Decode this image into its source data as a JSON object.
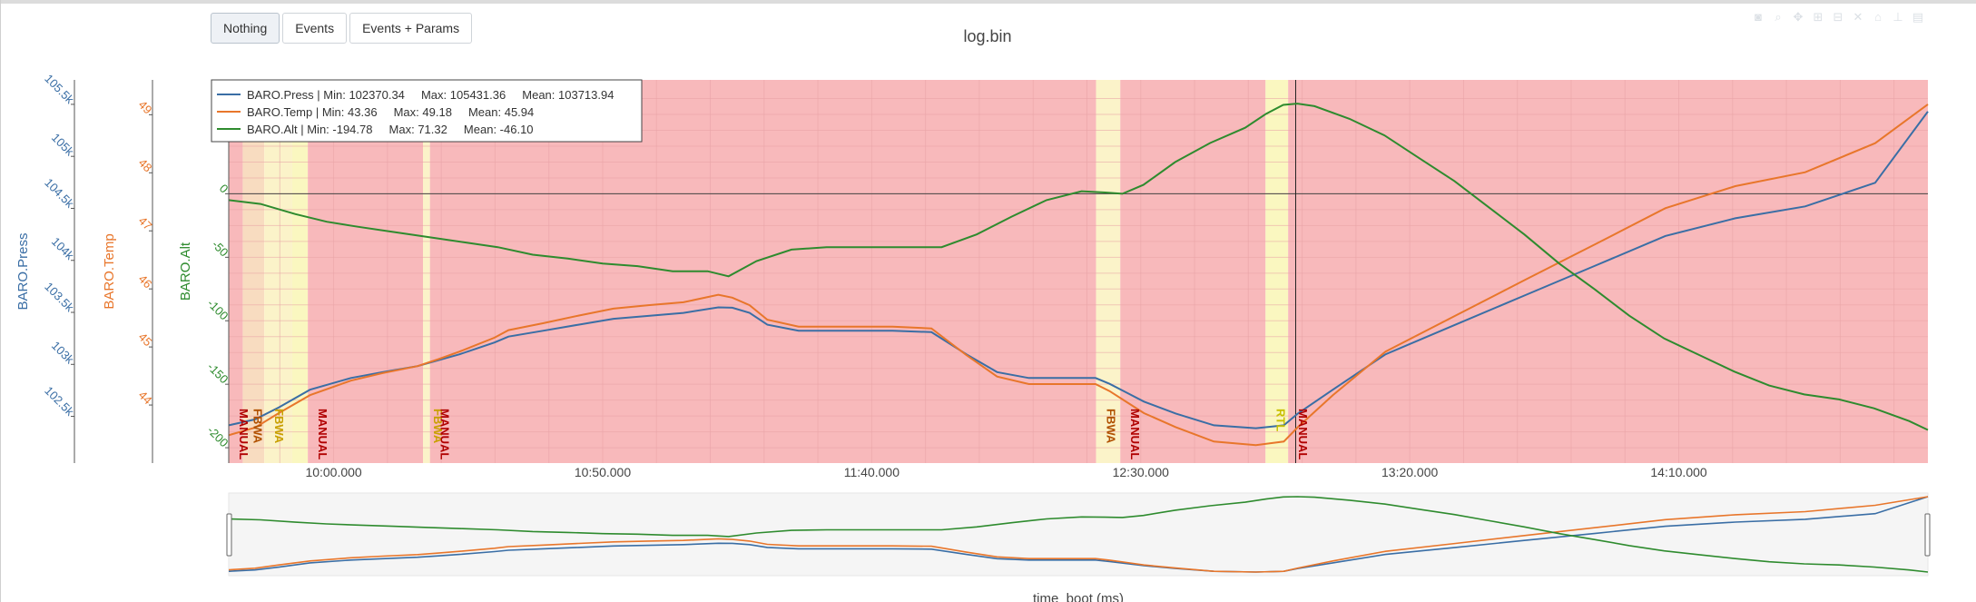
{
  "toolbar": {
    "buttons": [
      {
        "label": "Nothing",
        "active": true
      },
      {
        "label": "Events",
        "active": false
      },
      {
        "label": "Events + Params",
        "active": false
      }
    ]
  },
  "modebar_icons": [
    "camera-icon",
    "zoom-icon",
    "pan-icon",
    "zoom-in-icon",
    "zoom-out-icon",
    "autoscale-icon",
    "reset-axes-icon",
    "spike-lines-icon",
    "compare-hover-icon"
  ],
  "chart_data": {
    "type": "line",
    "title": "log.bin",
    "xlabel": "time_boot (ms)",
    "x_ticks": [
      "10:00.000",
      "10:50.000",
      "11:40.000",
      "12:30.000",
      "13:20.000",
      "14:10.000"
    ],
    "x_tick_values": [
      0,
      50,
      100,
      150,
      200,
      250
    ],
    "xlim": [
      -19.5,
      296.3
    ],
    "y_axes": [
      {
        "id": "press",
        "title": "BARO.Press",
        "color": "#3a6ea5",
        "ticks": [
          "102.5k",
          "103k",
          "103.5k",
          "104k",
          "104.5k",
          "105k",
          "105.5k"
        ],
        "tick_values": [
          102500,
          103000,
          103500,
          104000,
          104500,
          105000,
          105500
        ],
        "range": [
          102051,
          105735
        ]
      },
      {
        "id": "temp",
        "title": "BARO.Temp",
        "color": "#e8762b",
        "ticks": [
          "44",
          "45",
          "46",
          "47",
          "48",
          "49"
        ],
        "tick_values": [
          44,
          45,
          46,
          47,
          48,
          49
        ],
        "range": [
          43.0,
          49.6
        ]
      },
      {
        "id": "alt",
        "title": "BARO.Alt",
        "color": "#2e8b2e",
        "ticks": [
          "-200",
          "-150",
          "-100",
          "-50",
          "0"
        ],
        "tick_values": [
          -200,
          -150,
          -100,
          -50,
          0
        ],
        "range": [
          -212.1,
          89.7
        ]
      }
    ],
    "legend": {
      "placement": "top-left",
      "entries": [
        {
          "text": "BARO.Press | Min: 102370.34     Max: 105431.36     Mean: 103713.94",
          "color": "#3a6ea5"
        },
        {
          "text": "BARO.Temp | Min: 43.36     Max: 49.18     Mean: 45.94",
          "color": "#e8762b"
        },
        {
          "text": "BARO.Alt | Min: -194.78     Max: 71.32     Mean: -46.10",
          "color": "#2e8b2e"
        }
      ]
    },
    "mode_regions": [
      {
        "start": -19.5,
        "end": -16.9,
        "color": "#f8b9bb",
        "label": "MANUAL",
        "label_color": "#b00000"
      },
      {
        "start": -16.9,
        "end": -12.9,
        "color": "#f8dcc0",
        "label": "FBWA",
        "label_color": "#b05000"
      },
      {
        "start": -12.9,
        "end": -7.7,
        "color": "#fbf3c9",
        "label": "FBWA",
        "label_color": "#c8a000"
      },
      {
        "start": -7.7,
        "end": -4.8,
        "color": "#faf7c0",
        "label": "",
        "label_color": "#c8a000"
      },
      {
        "start": -4.8,
        "end": 16.6,
        "color": "#f8b9bb",
        "label": "MANUAL",
        "label_color": "#b00000"
      },
      {
        "start": 16.6,
        "end": 17.9,
        "color": "#fbf3c9",
        "label": "FBWA",
        "label_color": "#c8a000"
      },
      {
        "start": 17.9,
        "end": 141.7,
        "color": "#f8b9bb",
        "label": "MANUAL",
        "label_color": "#b00000"
      },
      {
        "start": 141.7,
        "end": 146.2,
        "color": "#fbf3c9",
        "label": "FBWA",
        "label_color": "#b05000"
      },
      {
        "start": 146.2,
        "end": 173.2,
        "color": "#f8b9bb",
        "label": "MANUAL",
        "label_color": "#b00000"
      },
      {
        "start": 173.2,
        "end": 177.4,
        "color": "#faf7c0",
        "label": "RTL",
        "label_color": "#c8c000"
      },
      {
        "start": 177.4,
        "end": 296.3,
        "color": "#f8b9bb",
        "label": "MANUAL",
        "label_color": "#b00000"
      }
    ],
    "cursor_x": 178.8,
    "series": [
      {
        "name": "BARO.Press",
        "axis": "press",
        "color": "#3a6ea5",
        "x": [
          -19.5,
          -14.6,
          -10.2,
          -4.4,
          3.2,
          9.1,
          15.6,
          19.5,
          23.4,
          29.9,
          32.5,
          39.0,
          45.5,
          52.0,
          58.5,
          65.0,
          71.5,
          74.1,
          77.3,
          80.6,
          86.4,
          97.5,
          103.9,
          111.1,
          117.6,
          123.3,
          129.2,
          134.5,
          138.4,
          141.6,
          144.2,
          147.4,
          150.6,
          156.5,
          163.6,
          171.4,
          176.6,
          179.2,
          185.7,
          195.5,
          208.5,
          221.5,
          234.5,
          247.5,
          260.5,
          273.5,
          286.5,
          296.3
        ],
        "y": [
          102414,
          102471,
          102585,
          102756,
          102869,
          102926,
          102983,
          103040,
          103097,
          103210,
          103267,
          103324,
          103381,
          103438,
          103466,
          103495,
          103548,
          103545,
          103495,
          103381,
          103324,
          103324,
          103324,
          103310,
          103097,
          102926,
          102869,
          102869,
          102869,
          102869,
          102813,
          102728,
          102642,
          102528,
          102414,
          102386,
          102414,
          102528,
          102756,
          103097,
          103381,
          103666,
          103950,
          104234,
          104405,
          104519,
          104746,
          105431
        ]
      },
      {
        "name": "BARO.Temp",
        "axis": "temp",
        "color": "#e8762b",
        "x": [
          -19.5,
          -14.6,
          -10.2,
          -4.4,
          3.2,
          9.1,
          15.6,
          19.5,
          23.4,
          29.9,
          32.5,
          39.0,
          45.5,
          52.0,
          58.5,
          65.0,
          71.5,
          74.1,
          77.3,
          80.6,
          86.4,
          97.5,
          103.9,
          111.1,
          117.6,
          123.3,
          129.2,
          134.5,
          138.4,
          141.6,
          144.2,
          147.4,
          150.6,
          156.5,
          163.6,
          171.4,
          176.6,
          179.2,
          185.7,
          195.5,
          208.5,
          221.5,
          234.5,
          247.5,
          260.5,
          273.5,
          286.5,
          296.3
        ],
        "y": [
          43.48,
          43.61,
          43.86,
          44.17,
          44.42,
          44.55,
          44.67,
          44.79,
          44.92,
          45.16,
          45.29,
          45.41,
          45.54,
          45.66,
          45.72,
          45.77,
          45.9,
          45.85,
          45.72,
          45.47,
          45.35,
          45.35,
          45.35,
          45.32,
          44.86,
          44.49,
          44.36,
          44.36,
          44.36,
          44.36,
          44.24,
          44.05,
          43.86,
          43.62,
          43.37,
          43.31,
          43.37,
          43.62,
          44.17,
          44.92,
          45.54,
          46.16,
          46.77,
          47.39,
          47.77,
          48.01,
          48.51,
          49.18
        ]
      },
      {
        "name": "BARO.Alt",
        "axis": "alt",
        "color": "#2e8b2e",
        "x": [
          -19.5,
          -13.6,
          -7.1,
          -1.3,
          4.6,
          11.0,
          17.5,
          24.0,
          30.5,
          37.0,
          43.5,
          50.0,
          56.5,
          63.0,
          69.5,
          73.4,
          78.6,
          85.1,
          91.6,
          96.8,
          102.4,
          107.8,
          113.0,
          119.5,
          126.0,
          132.5,
          139.0,
          143.4,
          146.6,
          150.5,
          156.4,
          162.9,
          169.4,
          173.3,
          176.5,
          179.1,
          182.3,
          188.8,
          195.3,
          201.8,
          208.3,
          214.8,
          221.3,
          227.8,
          234.3,
          240.8,
          247.3,
          253.8,
          260.3,
          266.8,
          273.3,
          279.8,
          286.3,
          292.8,
          296.3
        ],
        "y": [
          -5,
          -8,
          -16,
          -22,
          -26,
          -30,
          -34,
          -38,
          -42,
          -48,
          -51,
          -55,
          -57,
          -61,
          -61,
          -65,
          -53,
          -44,
          -42,
          -42,
          -42,
          -42,
          -42,
          -32,
          -18,
          -5,
          2,
          1,
          0,
          7,
          25,
          40,
          52,
          63,
          70,
          71,
          69,
          59,
          46,
          28,
          10,
          -11,
          -32,
          -55,
          -75,
          -96,
          -114,
          -127,
          -140,
          -151,
          -158,
          -162,
          -169,
          -179,
          -186
        ]
      }
    ]
  }
}
